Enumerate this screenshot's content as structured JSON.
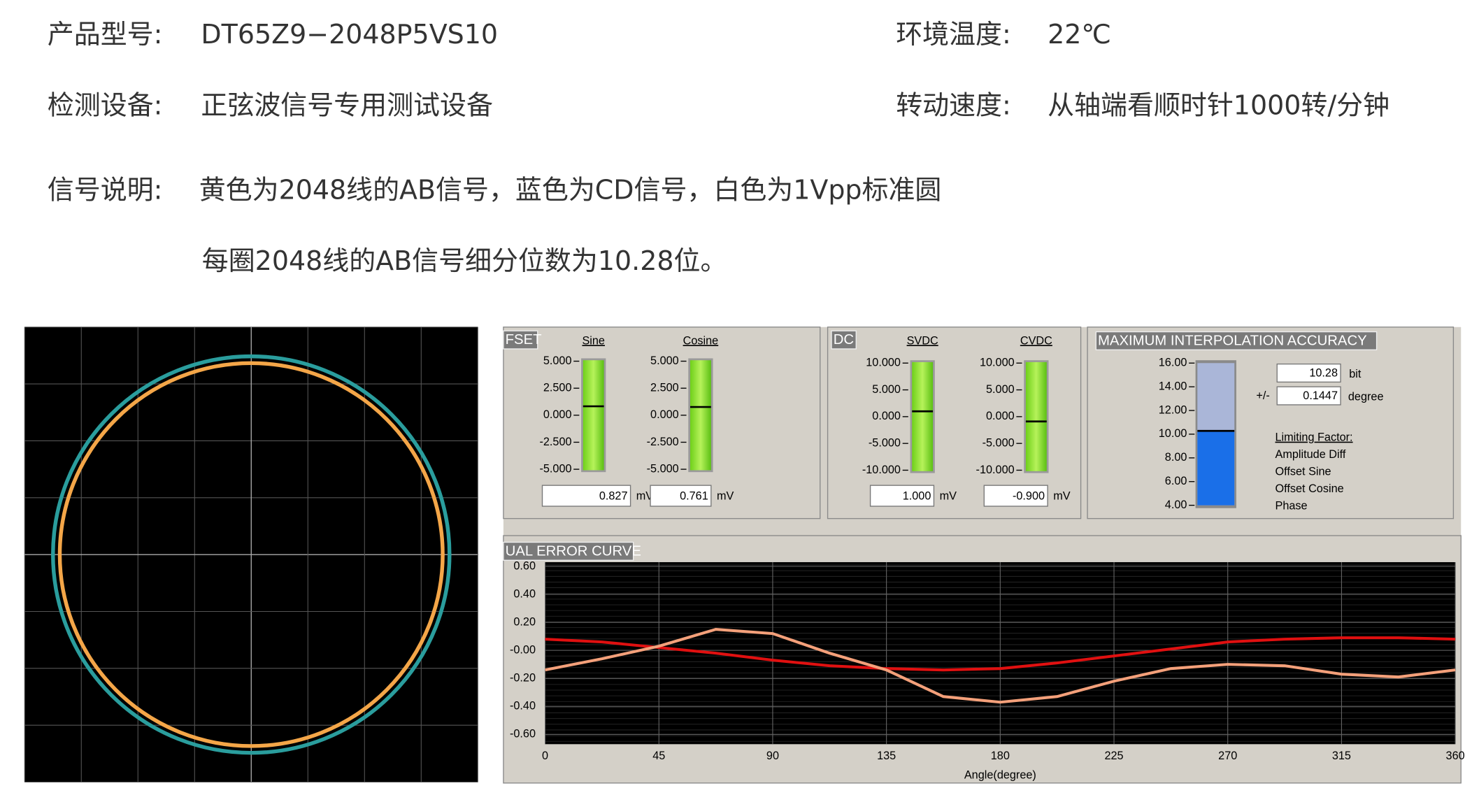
{
  "header": {
    "model_label": "产品型号:",
    "model": "DT65Z9−2048P5VS10",
    "temp_label": "环境温度:",
    "temp": "22℃",
    "device_label": "检测设备:",
    "device": "正弦波信号专用测试设备",
    "speed_label": "转动速度:",
    "speed": "从轴端看顺时针1000转/分钟",
    "signal_label": "信号说明:",
    "signal": "黄色为2048线的AB信号，蓝色为CD信号，白色为1Vpp标准圆",
    "signal2": "每圈2048线的AB信号细分位数为10.28位。"
  },
  "scope": {
    "divisions": 8,
    "circles": [
      {
        "color": "#2a9d9d",
        "radius": 3.5
      },
      {
        "color": "#f4a648",
        "radius": 3.38
      }
    ]
  },
  "offset": {
    "title": "FSET",
    "unit": "mV",
    "ylim": [
      -5,
      5
    ],
    "ticks": [
      {
        "value": 5,
        "label": "5.000"
      },
      {
        "value": 2.5,
        "label": "2.500"
      },
      {
        "value": 0,
        "label": "0.000"
      },
      {
        "value": -2.5,
        "label": "-2.500"
      },
      {
        "value": -5,
        "label": "-5.000"
      }
    ],
    "gauges": [
      {
        "name": "Sine",
        "value": 0.827
      },
      {
        "name": "Cosine",
        "value": 0.761
      }
    ]
  },
  "dc": {
    "title": "DC",
    "unit": "mV",
    "ylim": [
      -10,
      10
    ],
    "ticks": [
      {
        "value": 10,
        "label": "10.000"
      },
      {
        "value": 5,
        "label": "5.000"
      },
      {
        "value": 0,
        "label": "0.000"
      },
      {
        "value": -5,
        "label": "-5.000"
      },
      {
        "value": -10,
        "label": "-10.000"
      }
    ],
    "gauges": [
      {
        "name": "SVDC",
        "value": {
          "value": 1,
          "label": "1.000"
        }
      },
      {
        "name": "CVDC",
        "value": {
          "value": -0.9,
          "label": "-0.900"
        }
      }
    ]
  },
  "accuracy": {
    "title": "MAXIMUM INTERPOLATION ACCURACY",
    "ylim": [
      4,
      16
    ],
    "ticks": [
      {
        "value": 16,
        "label": "16.00"
      },
      {
        "value": 14,
        "label": "14.00"
      },
      {
        "value": 12,
        "label": "12.00"
      },
      {
        "value": 10,
        "label": "10.00"
      },
      {
        "value": 8,
        "label": "8.00"
      },
      {
        "value": 6,
        "label": "6.00"
      },
      {
        "value": 4,
        "label": "4.00"
      }
    ],
    "value": 10.28,
    "value_unit": "bit",
    "pm": "+/-",
    "degree": 0.1447,
    "degree_unit": "degree",
    "limiting_title": "Limiting Factor:",
    "factors": [
      {
        "label": "Amplitude Diff",
        "color": "#000000"
      },
      {
        "label": "Offset Sine",
        "color": "#ff2020"
      },
      {
        "label": "Offset Cosine",
        "color": "#000000"
      },
      {
        "label": "Phase",
        "color": "#000000"
      }
    ]
  },
  "error_curve": {
    "title": "UAL ERROR CURVE",
    "x_label": "Angle(degree)",
    "xlim": [
      0,
      360
    ],
    "ylim": [
      -0.67,
      0.63
    ],
    "xticks": [
      0,
      45,
      90,
      135,
      180,
      225,
      270,
      315,
      360
    ],
    "yticks": [
      {
        "value": 0.6,
        "label": "0.60"
      },
      {
        "value": 0.4,
        "label": "0.40"
      },
      {
        "value": 0.2,
        "label": "0.20"
      },
      {
        "value": 0,
        "label": "-0.00"
      },
      {
        "value": -0.2,
        "label": "-0.20"
      },
      {
        "value": -0.4,
        "label": "-0.40"
      },
      {
        "value": -0.6,
        "label": "-0.60"
      }
    ],
    "x": [
      0,
      22.5,
      45,
      67.5,
      90,
      112.5,
      135,
      157.5,
      180,
      202.5,
      225,
      247.5,
      270,
      292.5,
      315,
      337.5,
      360
    ],
    "series": [
      {
        "color": "#e01010",
        "values": [
          0.08,
          0.06,
          0.02,
          -0.02,
          -0.07,
          -0.11,
          -0.13,
          -0.14,
          -0.13,
          -0.09,
          -0.04,
          0.01,
          0.06,
          0.08,
          0.09,
          0.09,
          0.08
        ]
      },
      {
        "color": "#f4a07a",
        "values": [
          -0.14,
          -0.06,
          0.03,
          0.15,
          0.12,
          -0.02,
          -0.14,
          -0.33,
          -0.37,
          -0.33,
          -0.22,
          -0.13,
          -0.1,
          -0.11,
          -0.17,
          -0.19,
          -0.14
        ]
      }
    ]
  }
}
